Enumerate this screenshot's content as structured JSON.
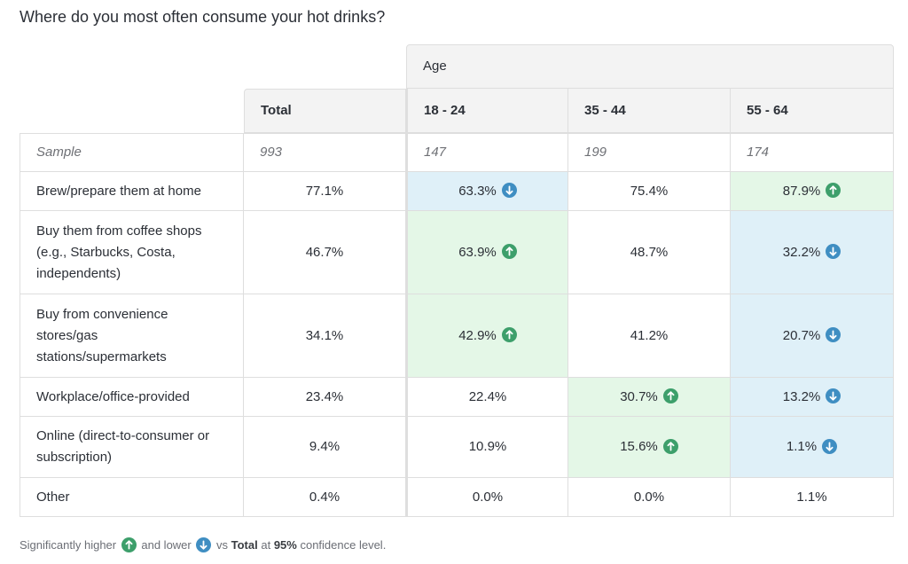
{
  "question": "Where do you most often consume your hot drinks?",
  "table": {
    "banner_label": "Age",
    "columns": [
      "Total",
      "18 - 24",
      "35 - 44",
      "55 - 64"
    ],
    "sample": {
      "label": "Sample",
      "values": [
        "993",
        "147",
        "199",
        "174"
      ]
    },
    "rows": [
      {
        "label": "Brew/prepare them at home",
        "cells": [
          {
            "value": "77.1%",
            "sig": ""
          },
          {
            "value": "63.3%",
            "sig": "down"
          },
          {
            "value": "75.4%",
            "sig": ""
          },
          {
            "value": "87.9%",
            "sig": "up"
          }
        ]
      },
      {
        "label": "Buy them from coffee shops (e.g., Starbucks, Costa, independents)",
        "cells": [
          {
            "value": "46.7%",
            "sig": ""
          },
          {
            "value": "63.9%",
            "sig": "up"
          },
          {
            "value": "48.7%",
            "sig": ""
          },
          {
            "value": "32.2%",
            "sig": "down"
          }
        ]
      },
      {
        "label": "Buy from convenience stores/gas stations/supermarkets",
        "cells": [
          {
            "value": "34.1%",
            "sig": ""
          },
          {
            "value": "42.9%",
            "sig": "up"
          },
          {
            "value": "41.2%",
            "sig": ""
          },
          {
            "value": "20.7%",
            "sig": "down"
          }
        ]
      },
      {
        "label": "Workplace/office-provided",
        "cells": [
          {
            "value": "23.4%",
            "sig": ""
          },
          {
            "value": "22.4%",
            "sig": ""
          },
          {
            "value": "30.7%",
            "sig": "up"
          },
          {
            "value": "13.2%",
            "sig": "down"
          }
        ]
      },
      {
        "label": "Online (direct-to-consumer or subscription)",
        "cells": [
          {
            "value": "9.4%",
            "sig": ""
          },
          {
            "value": "10.9%",
            "sig": ""
          },
          {
            "value": "15.6%",
            "sig": "up"
          },
          {
            "value": "1.1%",
            "sig": "down"
          }
        ]
      },
      {
        "label": "Other",
        "cells": [
          {
            "value": "0.4%",
            "sig": ""
          },
          {
            "value": "0.0%",
            "sig": ""
          },
          {
            "value": "0.0%",
            "sig": ""
          },
          {
            "value": "1.1%",
            "sig": ""
          }
        ]
      }
    ]
  },
  "footnote": {
    "part1": "Significantly higher",
    "part2": "and lower",
    "part3": "vs",
    "total": "Total",
    "part4": "at",
    "confidence": "95%",
    "part5": "confidence level."
  },
  "colors": {
    "higher_bg": "#e4f7e7",
    "lower_bg": "#dff0f8",
    "higher_icon": "#3d9f6b",
    "lower_icon": "#3f8ec2",
    "header_bg": "#f3f3f3",
    "border": "#dedede"
  },
  "icons": {
    "higher": "arrow-up-circle-icon",
    "lower": "arrow-down-circle-icon"
  }
}
